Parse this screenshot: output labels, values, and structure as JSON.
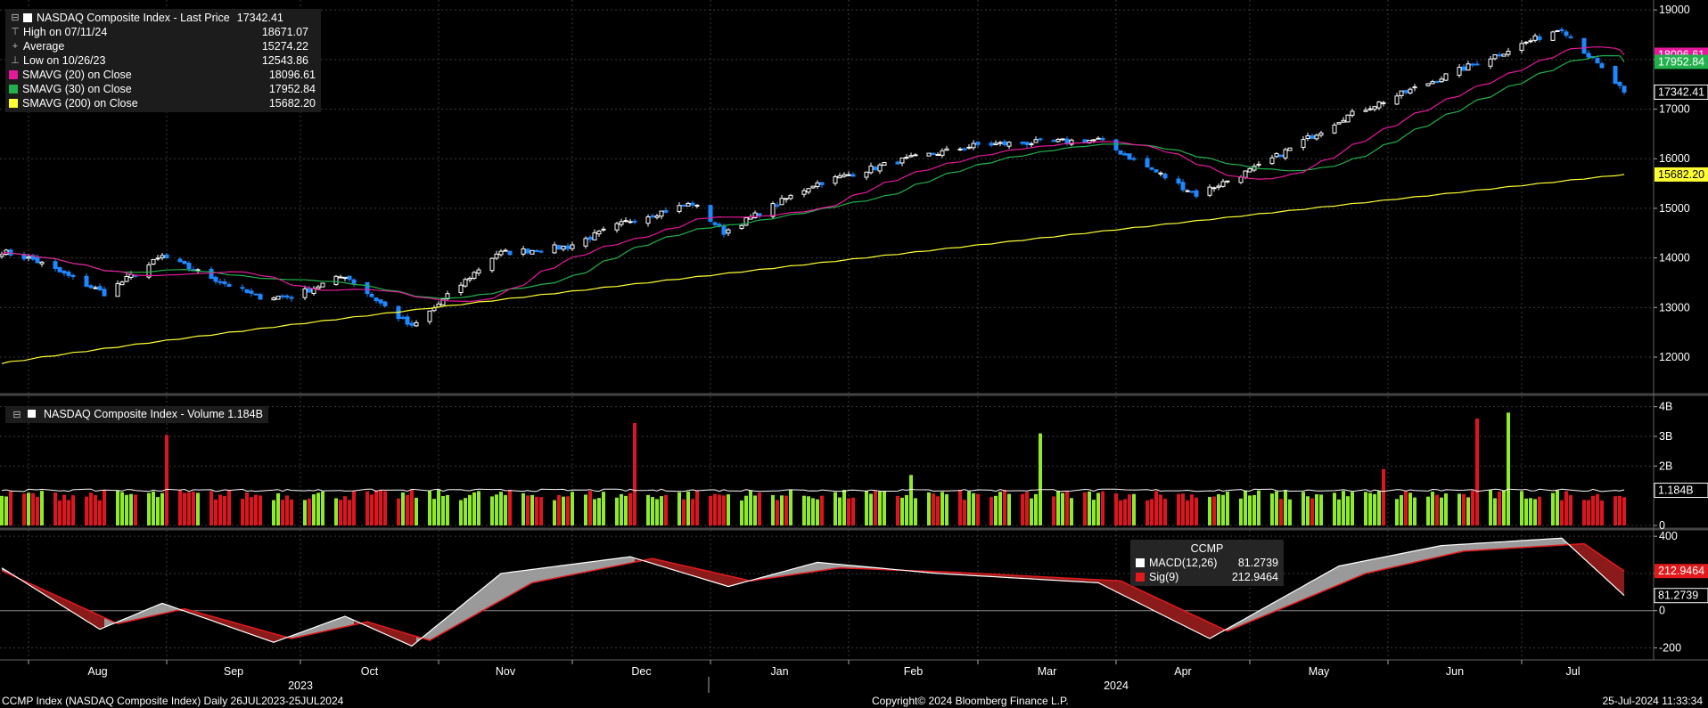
{
  "legend": {
    "title": "NASDAQ Composite Index - Last Price",
    "title_value": "17342.41",
    "items": [
      {
        "label": "High on 07/11/24",
        "value": "18671.07",
        "symbol": "⊤"
      },
      {
        "label": "Average",
        "value": "15274.22",
        "symbol": "+"
      },
      {
        "label": "Low on 10/26/23",
        "value": "12543.86",
        "symbol": "⊥"
      },
      {
        "label": "SMAVG (20)  on Close",
        "value": "18096.61",
        "color": "#e6199b"
      },
      {
        "label": "SMAVG (30)  on Close",
        "value": "17952.84",
        "color": "#22b14c"
      },
      {
        "label": "SMAVG (200)  on Close",
        "value": "15682.20",
        "color": "#ffff33"
      }
    ]
  },
  "volume_legend": {
    "text": "NASDAQ Composite Index - Volume 1.184B"
  },
  "macd_legend": {
    "title": "CCMP",
    "items": [
      {
        "label": "MACD(12,26)",
        "value": "81.2739",
        "color": "#ffffff"
      },
      {
        "label": "Sig(9)",
        "value": "212.9464",
        "color": "#e31a1c"
      }
    ]
  },
  "footer": {
    "left": "CCMP Index (NASDAQ Composite Index)  Daily 26JUL2023-25JUL2024",
    "center": "Copyright© 2024 Bloomberg Finance L.P.",
    "right": "25-Jul-2024 11:33:34"
  },
  "colors": {
    "up_candle": "#ffffff",
    "down_candle": "#1e88ff",
    "sma20": "#e6199b",
    "sma30": "#22b14c",
    "sma200": "#ffff33",
    "vol_up": "#8fea2b",
    "vol_down": "#e0141e",
    "macd": "#ffffff",
    "signal": "#e31a1c",
    "grid": "#3a3a3a"
  },
  "chart_data": [
    {
      "type": "candlestick",
      "title": "NASDAQ Composite Index - Last Price",
      "ylim": [
        11300,
        19200
      ],
      "y_ticks": [
        12000,
        13000,
        14000,
        15000,
        16000,
        17000,
        18000,
        19000
      ],
      "x_month_labels": [
        {
          "label": "Aug",
          "date": "2023-08-01"
        },
        {
          "label": "Sep",
          "date": "2023-09-01"
        },
        {
          "label": "Oct",
          "date": "2023-10-01"
        },
        {
          "label": "Nov",
          "date": "2023-11-01"
        },
        {
          "label": "Dec",
          "date": "2023-12-01"
        },
        {
          "label": "Jan",
          "date": "2024-01-01"
        },
        {
          "label": "Feb",
          "date": "2024-02-01"
        },
        {
          "label": "Mar",
          "date": "2024-03-01"
        },
        {
          "label": "Apr",
          "date": "2024-04-01"
        },
        {
          "label": "May",
          "date": "2024-05-01"
        },
        {
          "label": "Jun",
          "date": "2024-06-01"
        },
        {
          "label": "Jul",
          "date": "2024-07-01"
        }
      ],
      "x_year_labels": [
        {
          "label": "2023",
          "date": "2023-10-01"
        },
        {
          "label": "2024",
          "date": "2024-04-01"
        }
      ],
      "close_key_points": [
        {
          "date": "2023-07-26",
          "close": 14130
        },
        {
          "date": "2023-08-02",
          "close": 13970
        },
        {
          "date": "2023-08-18",
          "close": 13290
        },
        {
          "date": "2023-08-31",
          "close": 14030
        },
        {
          "date": "2023-09-21",
          "close": 13220
        },
        {
          "date": "2023-09-29",
          "close": 13220
        },
        {
          "date": "2023-10-11",
          "close": 13650
        },
        {
          "date": "2023-10-26",
          "close": 12600
        },
        {
          "date": "2023-11-14",
          "close": 14090
        },
        {
          "date": "2023-11-30",
          "close": 14230
        },
        {
          "date": "2023-12-14",
          "close": 14760
        },
        {
          "date": "2023-12-28",
          "close": 15100
        },
        {
          "date": "2024-01-04",
          "close": 14520
        },
        {
          "date": "2024-01-24",
          "close": 15480
        },
        {
          "date": "2024-02-12",
          "close": 15950
        },
        {
          "date": "2024-03-01",
          "close": 16280
        },
        {
          "date": "2024-03-28",
          "close": 16380
        },
        {
          "date": "2024-04-19",
          "close": 15280
        },
        {
          "date": "2024-05-03",
          "close": 15840
        },
        {
          "date": "2024-05-22",
          "close": 16830
        },
        {
          "date": "2024-06-12",
          "close": 17600
        },
        {
          "date": "2024-07-10",
          "close": 18640
        },
        {
          "date": "2024-07-17",
          "close": 17990
        },
        {
          "date": "2024-07-24",
          "close": 17342.41
        }
      ],
      "last_price": 17342.41,
      "sma20_last": 18096.61,
      "sma30_last": 17952.84,
      "sma200_first": 11870,
      "sma200_last": 15682.2,
      "right_labels": [
        {
          "text": "18096.61",
          "value": 18096.61,
          "bg": "#e6199b",
          "fg": "#ffffff"
        },
        {
          "text": "17952.84",
          "value": 17952.84,
          "bg": "#22b14c",
          "fg": "#ffffff"
        },
        {
          "text": "17342.41",
          "value": 17342.41,
          "bg": "#000000",
          "fg": "#ffffff",
          "border": "#ffffff"
        },
        {
          "text": "15682.20",
          "value": 15682.2,
          "bg": "#ffff33",
          "fg": "#000000"
        }
      ]
    },
    {
      "type": "bar",
      "title": "NASDAQ Composite Index - Volume 1.184B",
      "ylim": [
        0,
        4.2
      ],
      "y_unit": "B",
      "y_ticks": [
        {
          "label": "4B",
          "value": 4
        },
        {
          "label": "3B",
          "value": 3
        },
        {
          "label": "2B",
          "value": 2
        },
        {
          "label": "0",
          "value": 0
        }
      ],
      "typical_volume": 1.05,
      "average_line_last": 1.184,
      "spikes": [
        {
          "date": "2023-09-01",
          "value": 3.05
        },
        {
          "date": "2023-12-15",
          "value": 3.45
        },
        {
          "date": "2024-03-15",
          "value": 3.1
        },
        {
          "date": "2024-06-21",
          "value": 3.6
        },
        {
          "date": "2024-06-28",
          "value": 3.8
        },
        {
          "date": "2024-05-31",
          "value": 1.9
        },
        {
          "date": "2024-02-15",
          "value": 1.7
        }
      ],
      "right_label": {
        "text": "1.184B",
        "value": 1.184
      }
    },
    {
      "type": "line",
      "title": "CCMP",
      "ylim": [
        -260,
        420
      ],
      "y_ticks": [
        400,
        200,
        0,
        -200
      ],
      "series": [
        {
          "name": "MACD(12,26)",
          "last": 81.2739,
          "key_points": [
            {
              "date": "2023-07-26",
              "value": 230
            },
            {
              "date": "2023-08-17",
              "value": -100
            },
            {
              "date": "2023-08-31",
              "value": 40
            },
            {
              "date": "2023-09-25",
              "value": -170
            },
            {
              "date": "2023-10-11",
              "value": -30
            },
            {
              "date": "2023-10-26",
              "value": -190
            },
            {
              "date": "2023-11-15",
              "value": 200
            },
            {
              "date": "2023-12-14",
              "value": 290
            },
            {
              "date": "2024-01-05",
              "value": 130
            },
            {
              "date": "2024-01-25",
              "value": 260
            },
            {
              "date": "2024-02-21",
              "value": 200
            },
            {
              "date": "2024-03-28",
              "value": 150
            },
            {
              "date": "2024-04-22",
              "value": -150
            },
            {
              "date": "2024-05-21",
              "value": 240
            },
            {
              "date": "2024-06-13",
              "value": 350
            },
            {
              "date": "2024-07-10",
              "value": 390
            },
            {
              "date": "2024-07-24",
              "value": 81.2739
            }
          ]
        },
        {
          "name": "Sig(9)",
          "last": 212.9464,
          "key_points": [
            {
              "date": "2023-07-26",
              "value": 215
            },
            {
              "date": "2023-08-21",
              "value": -70
            },
            {
              "date": "2023-09-05",
              "value": 10
            },
            {
              "date": "2023-09-29",
              "value": -150
            },
            {
              "date": "2023-10-16",
              "value": -60
            },
            {
              "date": "2023-10-30",
              "value": -160
            },
            {
              "date": "2023-11-22",
              "value": 150
            },
            {
              "date": "2023-12-19",
              "value": 280
            },
            {
              "date": "2024-01-10",
              "value": 160
            },
            {
              "date": "2024-01-30",
              "value": 230
            },
            {
              "date": "2024-02-26",
              "value": 205
            },
            {
              "date": "2024-04-02",
              "value": 160
            },
            {
              "date": "2024-04-26",
              "value": -110
            },
            {
              "date": "2024-05-27",
              "value": 200
            },
            {
              "date": "2024-06-18",
              "value": 320
            },
            {
              "date": "2024-07-15",
              "value": 360
            },
            {
              "date": "2024-07-24",
              "value": 212.9464
            }
          ]
        }
      ],
      "right_labels": [
        {
          "text": "212.9464",
          "value": 212.9464,
          "bg": "#e31a1c",
          "fg": "#ffffff"
        },
        {
          "text": "81.2739",
          "value": 81.2739,
          "bg": "#000000",
          "fg": "#ffffff",
          "border": "#ffffff"
        }
      ]
    }
  ]
}
